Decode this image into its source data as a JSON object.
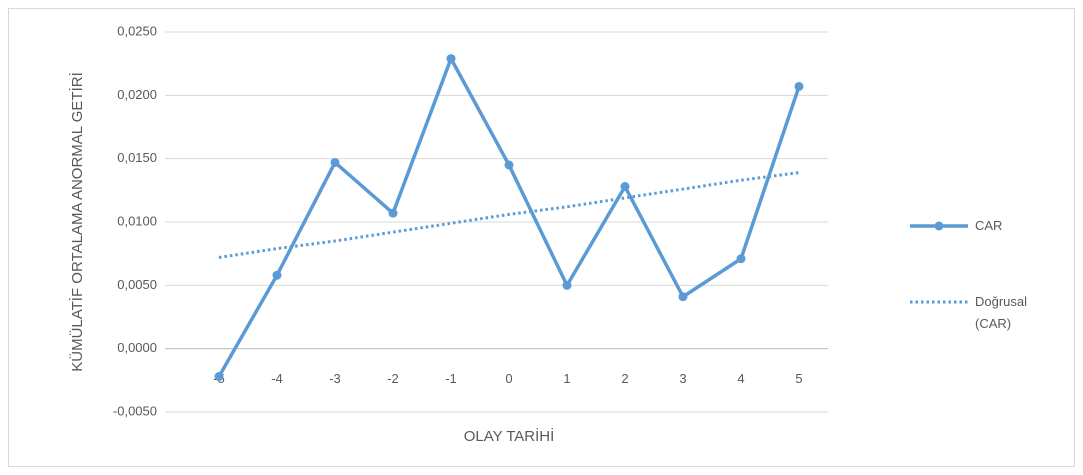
{
  "chart_data": {
    "type": "line",
    "x_label": "OLAY TARİHİ",
    "y_label": "KÜMÜLATİF ORTALAMA ANORMAL GETİRİ",
    "categories": [
      "-5",
      "-4",
      "-3",
      "-2",
      "-1",
      "0",
      "1",
      "2",
      "3",
      "4",
      "5"
    ],
    "series": [
      {
        "name": "CAR",
        "color": "#5b9bd5",
        "style": "solid",
        "markers": true,
        "values": [
          -0.0022,
          0.0058,
          0.0147,
          0.0107,
          0.0229,
          0.0145,
          0.005,
          0.0128,
          0.0041,
          0.0071,
          0.0207
        ]
      },
      {
        "name": "Doğrusal (CAR)",
        "color": "#5b9bd5",
        "style": "dotted",
        "markers": false,
        "values": [
          0.0072,
          0.0079,
          0.0085,
          0.0092,
          0.0099,
          0.0106,
          0.0112,
          0.0119,
          0.0126,
          0.0133,
          0.0139
        ]
      }
    ],
    "ylim": [
      -0.005,
      0.025
    ],
    "yticks": [
      {
        "value": -0.005,
        "label": "-0,0050"
      },
      {
        "value": 0,
        "label": "0,0000"
      },
      {
        "value": 0.005,
        "label": "0,0050"
      },
      {
        "value": 0.01,
        "label": "0,0100"
      },
      {
        "value": 0.015,
        "label": "0,0150"
      },
      {
        "value": 0.02,
        "label": "0,0200"
      },
      {
        "value": 0.025,
        "label": "0,0250"
      }
    ],
    "grid": true,
    "legend": "right"
  }
}
